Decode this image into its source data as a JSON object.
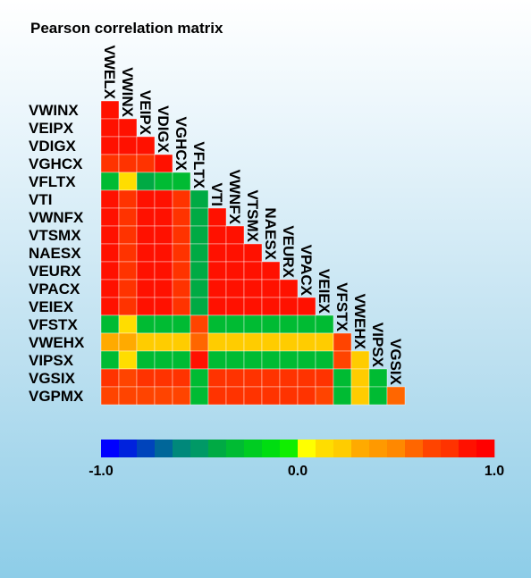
{
  "chart_data": {
    "type": "heatmap",
    "title": "Pearson correlation matrix",
    "variables": [
      "VWELX",
      "VWINX",
      "VEIPX",
      "VDIGX",
      "VGHCX",
      "VFLTX",
      "VTI",
      "VWNFX",
      "VTSMX",
      "NAESX",
      "VEURX",
      "VPACX",
      "VEIEX",
      "VFSTX",
      "VWEHX",
      "VIPSX",
      "VGSIX",
      "VGPMX"
    ],
    "row_labels": [
      "VWINX",
      "VEIPX",
      "VDIGX",
      "VGHCX",
      "VFLTX",
      "VTI",
      "VWNFX",
      "VTSMX",
      "NAESX",
      "VEURX",
      "VPACX",
      "VEIEX",
      "VFSTX",
      "VWEHX",
      "VIPSX",
      "VGSIX",
      "VGPMX"
    ],
    "column_labels": [
      "VWELX",
      "VWINX",
      "VEIPX",
      "VDIGX",
      "VGHCX",
      "VFLTX",
      "VTI",
      "VWNFX",
      "VTSMX",
      "NAESX",
      "VEURX",
      "VPACX",
      "VEIEX",
      "VFSTX",
      "VWEHX",
      "VIPSX",
      "VGSIX"
    ],
    "layout": "lower-triangle",
    "values": [
      [
        0.95
      ],
      [
        0.95,
        0.9
      ],
      [
        0.95,
        0.9,
        0.95
      ],
      [
        0.85,
        0.8,
        0.85,
        0.9
      ],
      [
        -0.35,
        0.1,
        -0.4,
        -0.35,
        -0.3
      ],
      [
        0.95,
        0.85,
        0.9,
        0.9,
        0.85,
        -0.4
      ],
      [
        0.95,
        0.85,
        0.9,
        0.9,
        0.85,
        -0.4,
        0.95
      ],
      [
        0.95,
        0.85,
        0.9,
        0.9,
        0.85,
        -0.4,
        0.95,
        0.95
      ],
      [
        0.95,
        0.85,
        0.9,
        0.9,
        0.85,
        -0.4,
        0.95,
        0.95,
        0.95
      ],
      [
        0.95,
        0.85,
        0.9,
        0.9,
        0.85,
        -0.4,
        0.95,
        0.95,
        0.95,
        0.9
      ],
      [
        0.95,
        0.85,
        0.9,
        0.9,
        0.85,
        -0.4,
        0.95,
        0.95,
        0.95,
        0.9,
        0.95
      ],
      [
        0.9,
        0.85,
        0.9,
        0.9,
        0.85,
        -0.4,
        0.95,
        0.95,
        0.95,
        0.9,
        0.95,
        0.95
      ],
      [
        -0.3,
        0.1,
        -0.35,
        -0.35,
        -0.3,
        0.7,
        -0.35,
        -0.35,
        -0.35,
        -0.35,
        -0.35,
        -0.35,
        -0.3
      ],
      [
        0.35,
        0.3,
        0.25,
        0.25,
        0.25,
        0.6,
        0.2,
        0.2,
        0.2,
        0.2,
        0.25,
        0.25,
        0.2,
        0.7
      ],
      [
        -0.3,
        0.15,
        -0.35,
        -0.35,
        -0.3,
        0.9,
        -0.35,
        -0.35,
        -0.35,
        -0.35,
        -0.35,
        -0.3,
        -0.35,
        0.7,
        0.2
      ],
      [
        0.8,
        0.75,
        0.85,
        0.85,
        0.8,
        -0.35,
        0.85,
        0.85,
        0.85,
        0.85,
        0.85,
        0.8,
        0.8,
        -0.3,
        0.2,
        -0.3
      ],
      [
        0.75,
        0.7,
        0.7,
        0.75,
        0.7,
        -0.3,
        0.8,
        0.8,
        0.8,
        0.8,
        0.8,
        0.8,
        0.75,
        -0.3,
        0.2,
        -0.3,
        0.65
      ]
    ],
    "color_scale": {
      "min": -1.0,
      "max": 1.0,
      "tick_labels": [
        "-1.0",
        "0.0",
        "1.0"
      ],
      "steps": [
        "#0000ff",
        "#0022dd",
        "#0044bb",
        "#006699",
        "#00887a",
        "#009966",
        "#00aa44",
        "#00bb33",
        "#00cc22",
        "#00dd11",
        "#11ee00",
        "#ffff00",
        "#ffdd00",
        "#ffcc00",
        "#ffaa00",
        "#ff9900",
        "#ff8800",
        "#ff6600",
        "#ff4400",
        "#ff3300",
        "#ff1100",
        "#ff0000"
      ]
    }
  }
}
